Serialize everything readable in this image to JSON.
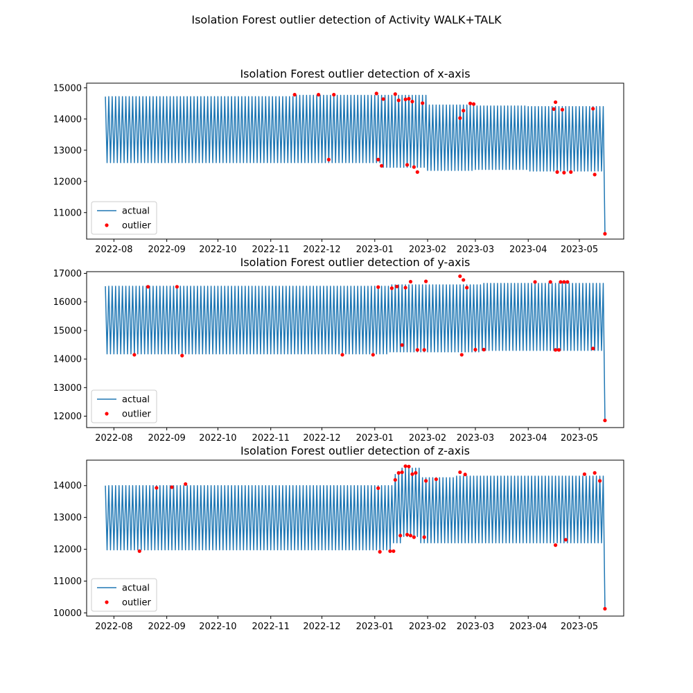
{
  "figure": {
    "suptitle": "Isolation Forest outlier detection of Activity WALK+TALK"
  },
  "chart_data": [
    {
      "type": "line",
      "title": "Isolation Forest outlier detection of x-axis",
      "xlabel": "",
      "ylabel": "",
      "x_range": [
        "2022-07-16",
        "2023-05-27"
      ],
      "ylim": [
        10150,
        15150
      ],
      "x_ticks": [
        "2022-08-01",
        "2022-09-01",
        "2022-10-01",
        "2022-11-01",
        "2022-12-01",
        "2023-01-01",
        "2023-02-01",
        "2023-03-01",
        "2023-04-01",
        "2023-05-01"
      ],
      "x_tick_labels": [
        "2022-08",
        "2022-09",
        "2022-10",
        "2022-11",
        "2022-12",
        "2023-01",
        "2023-02",
        "2023-03",
        "2023-04",
        "2023-05"
      ],
      "y_ticks": [
        11000,
        12000,
        13000,
        14000,
        15000
      ],
      "y_tick_labels": [
        "11000",
        "12000",
        "13000",
        "14000",
        "15000"
      ],
      "legend": {
        "position": "lower-left",
        "entries": [
          "actual",
          "outlier"
        ]
      },
      "series": [
        {
          "name": "actual",
          "color": "#1f77b4",
          "pattern": {
            "start": "2022-07-27",
            "end": "2023-05-15",
            "period_days": 2,
            "segments": [
              {
                "from": "2022-07-27",
                "high": 14720,
                "low": 12600
              },
              {
                "from": "2022-11-15",
                "high": 14760,
                "low": 12600
              },
              {
                "from": "2023-01-05",
                "high": 14760,
                "low": 12450
              },
              {
                "from": "2023-02-01",
                "high": 14450,
                "low": 12350
              },
              {
                "from": "2023-03-01",
                "high": 14420,
                "low": 12380
              },
              {
                "from": "2023-04-01",
                "high": 14400,
                "low": 12330
              }
            ],
            "final": {
              "date": "2023-05-16",
              "value": 10320
            }
          }
        },
        {
          "name": "outlier",
          "color": "#ff0000",
          "type": "scatter",
          "points": [
            {
              "x": "2022-11-15",
              "y": 14780
            },
            {
              "x": "2022-11-29",
              "y": 14780
            },
            {
              "x": "2022-12-05",
              "y": 12700
            },
            {
              "x": "2022-12-08",
              "y": 14780
            },
            {
              "x": "2023-01-02",
              "y": 14820
            },
            {
              "x": "2023-01-03",
              "y": 12700
            },
            {
              "x": "2023-01-05",
              "y": 12500
            },
            {
              "x": "2023-01-06",
              "y": 14640
            },
            {
              "x": "2023-01-13",
              "y": 14800
            },
            {
              "x": "2023-01-15",
              "y": 14600
            },
            {
              "x": "2023-01-19",
              "y": 14630
            },
            {
              "x": "2023-01-20",
              "y": 12530
            },
            {
              "x": "2023-01-21",
              "y": 14650
            },
            {
              "x": "2023-01-23",
              "y": 14560
            },
            {
              "x": "2023-01-24",
              "y": 12460
            },
            {
              "x": "2023-01-26",
              "y": 12300
            },
            {
              "x": "2023-01-29",
              "y": 14510
            },
            {
              "x": "2023-02-20",
              "y": 14030
            },
            {
              "x": "2023-02-22",
              "y": 14270
            },
            {
              "x": "2023-02-26",
              "y": 14500
            },
            {
              "x": "2023-02-28",
              "y": 14480
            },
            {
              "x": "2023-04-16",
              "y": 14320
            },
            {
              "x": "2023-04-17",
              "y": 14540
            },
            {
              "x": "2023-04-18",
              "y": 12300
            },
            {
              "x": "2023-04-21",
              "y": 14300
            },
            {
              "x": "2023-04-22",
              "y": 12280
            },
            {
              "x": "2023-04-26",
              "y": 12300
            },
            {
              "x": "2023-05-09",
              "y": 14330
            },
            {
              "x": "2023-05-10",
              "y": 12220
            },
            {
              "x": "2023-05-16",
              "y": 10320
            }
          ]
        }
      ]
    },
    {
      "type": "line",
      "title": "Isolation Forest outlier detection of y-axis",
      "xlabel": "",
      "ylabel": "",
      "x_range": [
        "2022-07-16",
        "2023-05-27"
      ],
      "ylim": [
        11600,
        17060
      ],
      "x_ticks": [
        "2022-08-01",
        "2022-09-01",
        "2022-10-01",
        "2022-11-01",
        "2022-12-01",
        "2023-01-01",
        "2023-02-01",
        "2023-03-01",
        "2023-04-01",
        "2023-05-01"
      ],
      "x_tick_labels": [
        "2022-08",
        "2022-09",
        "2022-10",
        "2022-11",
        "2022-12",
        "2023-01",
        "2023-02",
        "2023-03",
        "2023-04",
        "2023-05"
      ],
      "y_ticks": [
        12000,
        13000,
        14000,
        15000,
        16000,
        17000
      ],
      "y_tick_labels": [
        "12000",
        "13000",
        "14000",
        "15000",
        "16000",
        "17000"
      ],
      "legend": {
        "position": "lower-left",
        "entries": [
          "actual",
          "outlier"
        ]
      },
      "series": [
        {
          "name": "actual",
          "color": "#1f77b4",
          "pattern": {
            "start": "2022-07-27",
            "end": "2023-05-15",
            "period_days": 2,
            "segments": [
              {
                "from": "2022-07-27",
                "high": 16550,
                "low": 14180
              },
              {
                "from": "2023-01-10",
                "high": 16600,
                "low": 14250
              },
              {
                "from": "2023-03-05",
                "high": 16650,
                "low": 14300
              }
            ],
            "final": {
              "date": "2023-05-16",
              "value": 11850
            }
          }
        },
        {
          "name": "outlier",
          "color": "#ff0000",
          "type": "scatter",
          "points": [
            {
              "x": "2022-08-13",
              "y": 14150
            },
            {
              "x": "2022-08-21",
              "y": 16530
            },
            {
              "x": "2022-09-07",
              "y": 16530
            },
            {
              "x": "2022-09-10",
              "y": 14120
            },
            {
              "x": "2022-12-13",
              "y": 14150
            },
            {
              "x": "2022-12-31",
              "y": 14150
            },
            {
              "x": "2023-01-03",
              "y": 16520
            },
            {
              "x": "2023-01-11",
              "y": 16480
            },
            {
              "x": "2023-01-14",
              "y": 16540
            },
            {
              "x": "2023-01-17",
              "y": 14490
            },
            {
              "x": "2023-01-19",
              "y": 16500
            },
            {
              "x": "2023-01-22",
              "y": 16710
            },
            {
              "x": "2023-01-26",
              "y": 14320
            },
            {
              "x": "2023-01-30",
              "y": 14320
            },
            {
              "x": "2023-01-31",
              "y": 16720
            },
            {
              "x": "2023-02-20",
              "y": 16900
            },
            {
              "x": "2023-02-21",
              "y": 14150
            },
            {
              "x": "2023-02-22",
              "y": 16770
            },
            {
              "x": "2023-02-24",
              "y": 16500
            },
            {
              "x": "2023-03-01",
              "y": 14330
            },
            {
              "x": "2023-03-06",
              "y": 14330
            },
            {
              "x": "2023-04-05",
              "y": 16700
            },
            {
              "x": "2023-04-14",
              "y": 16700
            },
            {
              "x": "2023-04-17",
              "y": 14320
            },
            {
              "x": "2023-04-19",
              "y": 14320
            },
            {
              "x": "2023-04-20",
              "y": 16700
            },
            {
              "x": "2023-04-22",
              "y": 16700
            },
            {
              "x": "2023-04-24",
              "y": 16700
            },
            {
              "x": "2023-05-09",
              "y": 14370
            },
            {
              "x": "2023-05-16",
              "y": 11850
            }
          ]
        }
      ]
    },
    {
      "type": "line",
      "title": "Isolation Forest outlier detection of z-axis",
      "xlabel": "",
      "ylabel": "",
      "x_range": [
        "2022-07-16",
        "2023-05-27"
      ],
      "ylim": [
        9900,
        14800
      ],
      "x_ticks": [
        "2022-08-01",
        "2022-09-01",
        "2022-10-01",
        "2022-11-01",
        "2022-12-01",
        "2023-01-01",
        "2023-02-01",
        "2023-03-01",
        "2023-04-01",
        "2023-05-01"
      ],
      "x_tick_labels": [
        "2022-08",
        "2022-09",
        "2022-10",
        "2022-11",
        "2022-12",
        "2023-01",
        "2023-02",
        "2023-03",
        "2023-04",
        "2023-05"
      ],
      "y_ticks": [
        10000,
        11000,
        12000,
        13000,
        14000
      ],
      "y_tick_labels": [
        "10000",
        "11000",
        "12000",
        "13000",
        "14000"
      ],
      "legend": {
        "position": "lower-left",
        "entries": [
          "actual",
          "outlier"
        ]
      },
      "series": [
        {
          "name": "actual",
          "color": "#1f77b4",
          "pattern": {
            "start": "2022-07-27",
            "end": "2023-05-15",
            "period_days": 2,
            "segments": [
              {
                "from": "2022-07-27",
                "high": 14000,
                "low": 11980
              },
              {
                "from": "2023-01-12",
                "high": 14350,
                "low": 12200
              },
              {
                "from": "2023-01-17",
                "high": 14550,
                "low": 12400
              },
              {
                "from": "2023-01-28",
                "high": 14250,
                "low": 12200
              },
              {
                "from": "2023-02-18",
                "high": 14300,
                "low": 12200
              }
            ],
            "final": {
              "date": "2023-05-16",
              "value": 10130
            }
          }
        },
        {
          "name": "outlier",
          "color": "#ff0000",
          "type": "scatter",
          "points": [
            {
              "x": "2022-08-16",
              "y": 11940
            },
            {
              "x": "2022-08-26",
              "y": 13930
            },
            {
              "x": "2022-09-04",
              "y": 13950
            },
            {
              "x": "2022-09-12",
              "y": 14050
            },
            {
              "x": "2023-01-03",
              "y": 13920
            },
            {
              "x": "2023-01-04",
              "y": 11920
            },
            {
              "x": "2023-01-10",
              "y": 11940
            },
            {
              "x": "2023-01-12",
              "y": 11940
            },
            {
              "x": "2023-01-13",
              "y": 14180
            },
            {
              "x": "2023-01-15",
              "y": 14400
            },
            {
              "x": "2023-01-16",
              "y": 12430
            },
            {
              "x": "2023-01-17",
              "y": 14420
            },
            {
              "x": "2023-01-19",
              "y": 14610
            },
            {
              "x": "2023-01-20",
              "y": 12460
            },
            {
              "x": "2023-01-21",
              "y": 14600
            },
            {
              "x": "2023-01-22",
              "y": 12430
            },
            {
              "x": "2023-01-23",
              "y": 14360
            },
            {
              "x": "2023-01-24",
              "y": 12380
            },
            {
              "x": "2023-01-25",
              "y": 14400
            },
            {
              "x": "2023-01-30",
              "y": 12380
            },
            {
              "x": "2023-01-31",
              "y": 14150
            },
            {
              "x": "2023-02-06",
              "y": 14200
            },
            {
              "x": "2023-02-20",
              "y": 14420
            },
            {
              "x": "2023-02-23",
              "y": 14350
            },
            {
              "x": "2023-04-17",
              "y": 12130
            },
            {
              "x": "2023-04-23",
              "y": 12300
            },
            {
              "x": "2023-05-04",
              "y": 14360
            },
            {
              "x": "2023-05-10",
              "y": 14400
            },
            {
              "x": "2023-05-13",
              "y": 14150
            },
            {
              "x": "2023-05-16",
              "y": 10130
            }
          ]
        }
      ]
    }
  ]
}
